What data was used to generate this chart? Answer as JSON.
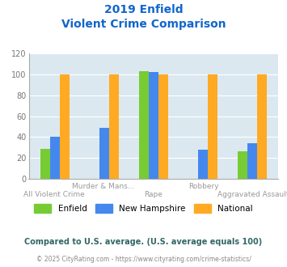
{
  "title_line1": "2019 Enfield",
  "title_line2": "Violent Crime Comparison",
  "categories": [
    "All Violent Crime",
    "Murder & Mans...",
    "Rape",
    "Robbery",
    "Aggravated Assault"
  ],
  "categories_top": [
    "",
    "Murder & Mans...",
    "",
    "Robbery",
    ""
  ],
  "categories_bottom": [
    "All Violent Crime",
    "",
    "Rape",
    "",
    "Aggravated Assault"
  ],
  "enfield": [
    29,
    0,
    103,
    0,
    26
  ],
  "new_hampshire": [
    40,
    49,
    102,
    28,
    34
  ],
  "national": [
    100,
    100,
    100,
    100,
    100
  ],
  "color_enfield": "#77cc33",
  "color_nh": "#4488ee",
  "color_national": "#ffaa22",
  "color_bg": "#dce8f0",
  "color_title": "#1166cc",
  "ylim": [
    0,
    120
  ],
  "yticks": [
    0,
    20,
    40,
    60,
    80,
    100,
    120
  ],
  "legend_labels": [
    "Enfield",
    "New Hampshire",
    "National"
  ],
  "footer_text1": "Compared to U.S. average. (U.S. average equals 100)",
  "footer_text2": "© 2025 CityRating.com - https://www.cityrating.com/crime-statistics/"
}
